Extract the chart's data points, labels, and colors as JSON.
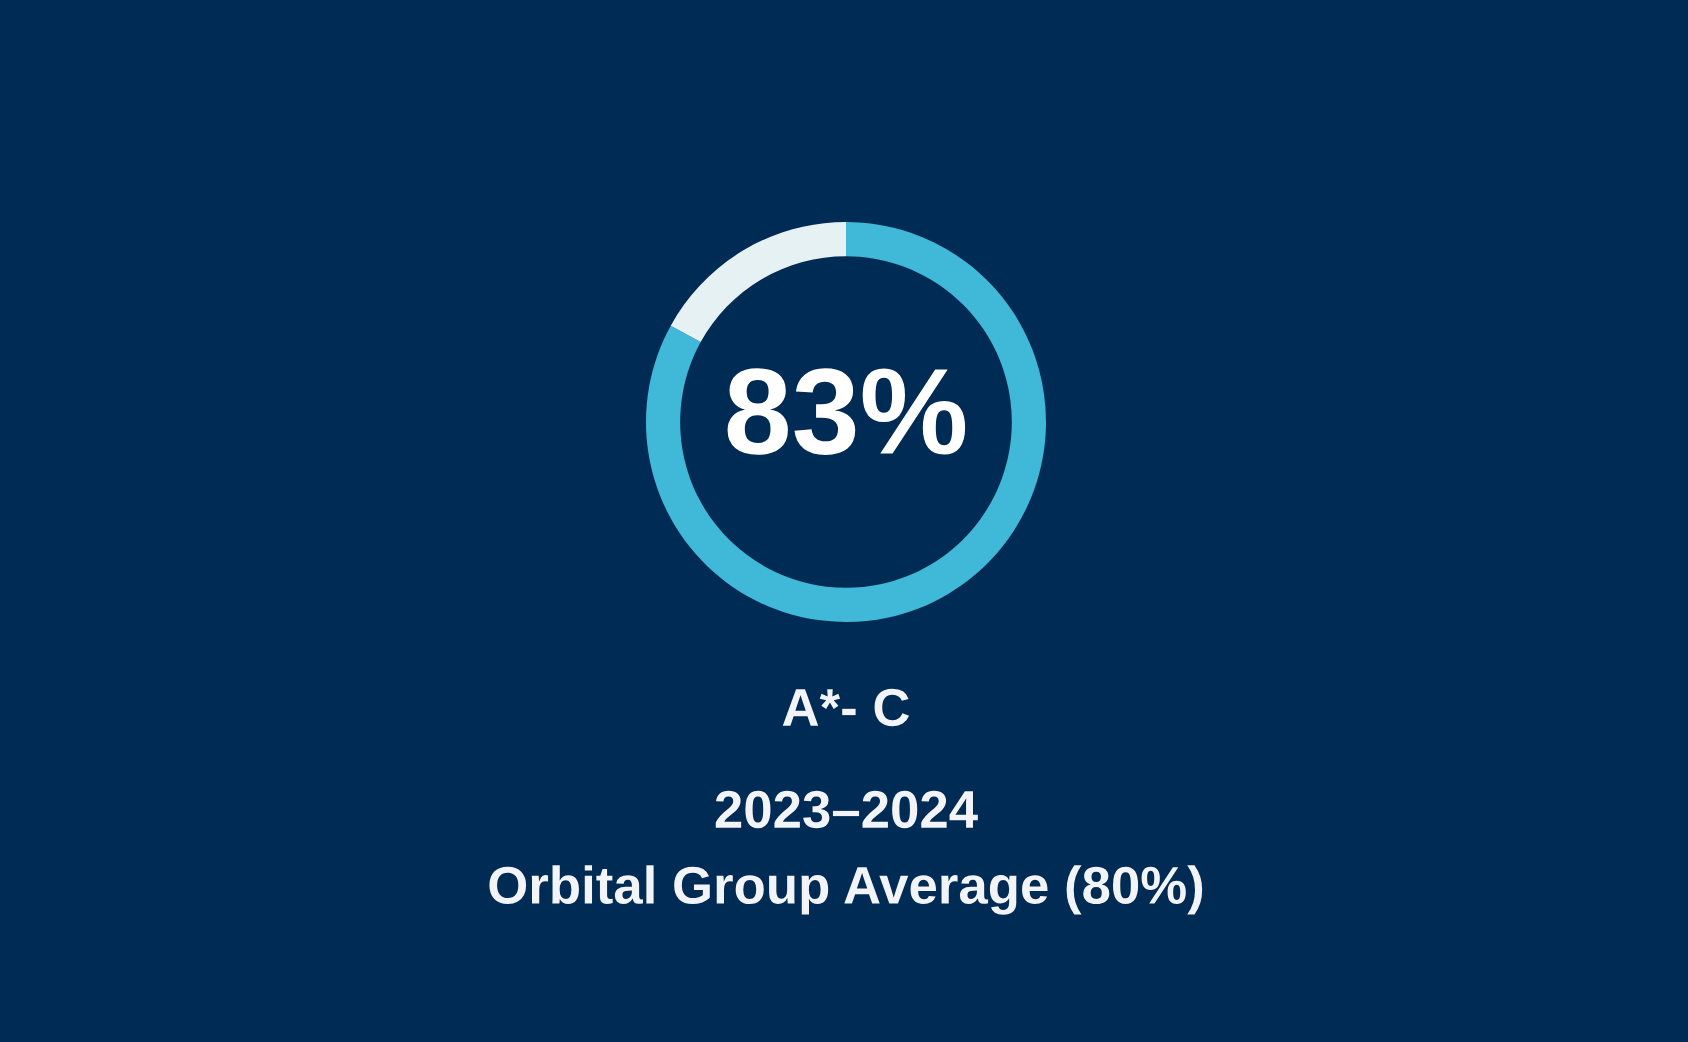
{
  "chart_data": {
    "type": "donut",
    "categories": [
      null,
      null
    ],
    "values": [
      83,
      17
    ],
    "colors": [
      "#40b8d8",
      "#e6f1f4"
    ],
    "value_labels": [
      "83%",
      null
    ],
    "annotations": [
      "A*- C",
      "2023–2024",
      "Orbital Group Average (80%)"
    ]
  }
}
